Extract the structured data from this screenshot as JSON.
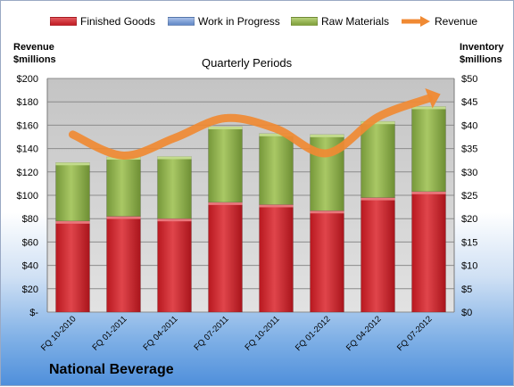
{
  "company": "National Beverage",
  "chart_data": {
    "type": "bar",
    "stacked": true,
    "title": "Quarterly Periods",
    "left_axis_title": [
      "Revenue",
      "$millions"
    ],
    "right_axis_title": [
      "Inventory",
      "$millions"
    ],
    "categories": [
      "FQ 10-2010",
      "FQ 01-2011",
      "FQ 04-2011",
      "FQ 07-2011",
      "FQ 10-2011",
      "FQ 01-2012",
      "FQ 04-2012",
      "FQ 07-2012"
    ],
    "left_ticks": [
      "$-",
      "$20",
      "$40",
      "$60",
      "$80",
      "$100",
      "$120",
      "$140",
      "$160",
      "$180",
      "$200"
    ],
    "right_ticks": [
      "$0",
      "$5",
      "$10",
      "$15",
      "$20",
      "$25",
      "$30",
      "$35",
      "$40",
      "$45",
      "$50"
    ],
    "ylim_left": [
      0,
      200
    ],
    "ylim_right": [
      0,
      50
    ],
    "grid": true,
    "legend_position": "top",
    "series": [
      {
        "name": "Finished Goods",
        "axis": "right",
        "color": "#d0232a",
        "values": [
          19.5,
          20.5,
          20.0,
          23.5,
          23.0,
          21.7,
          24.5,
          25.8
        ]
      },
      {
        "name": "Work in Progress",
        "axis": "right",
        "color": "#6f93cd",
        "values": [
          0,
          0,
          0,
          0,
          0,
          0,
          0,
          0
        ]
      },
      {
        "name": "Raw Materials",
        "axis": "right",
        "color": "#8cad44",
        "values": [
          12.5,
          12.7,
          13.3,
          16.2,
          15.2,
          16.3,
          16.3,
          18.2
        ]
      },
      {
        "name": "Revenue",
        "axis": "left",
        "type": "line",
        "color": "#f08a33",
        "values": [
          152,
          134,
          149,
          166,
          157,
          136,
          167,
          183
        ]
      }
    ]
  }
}
